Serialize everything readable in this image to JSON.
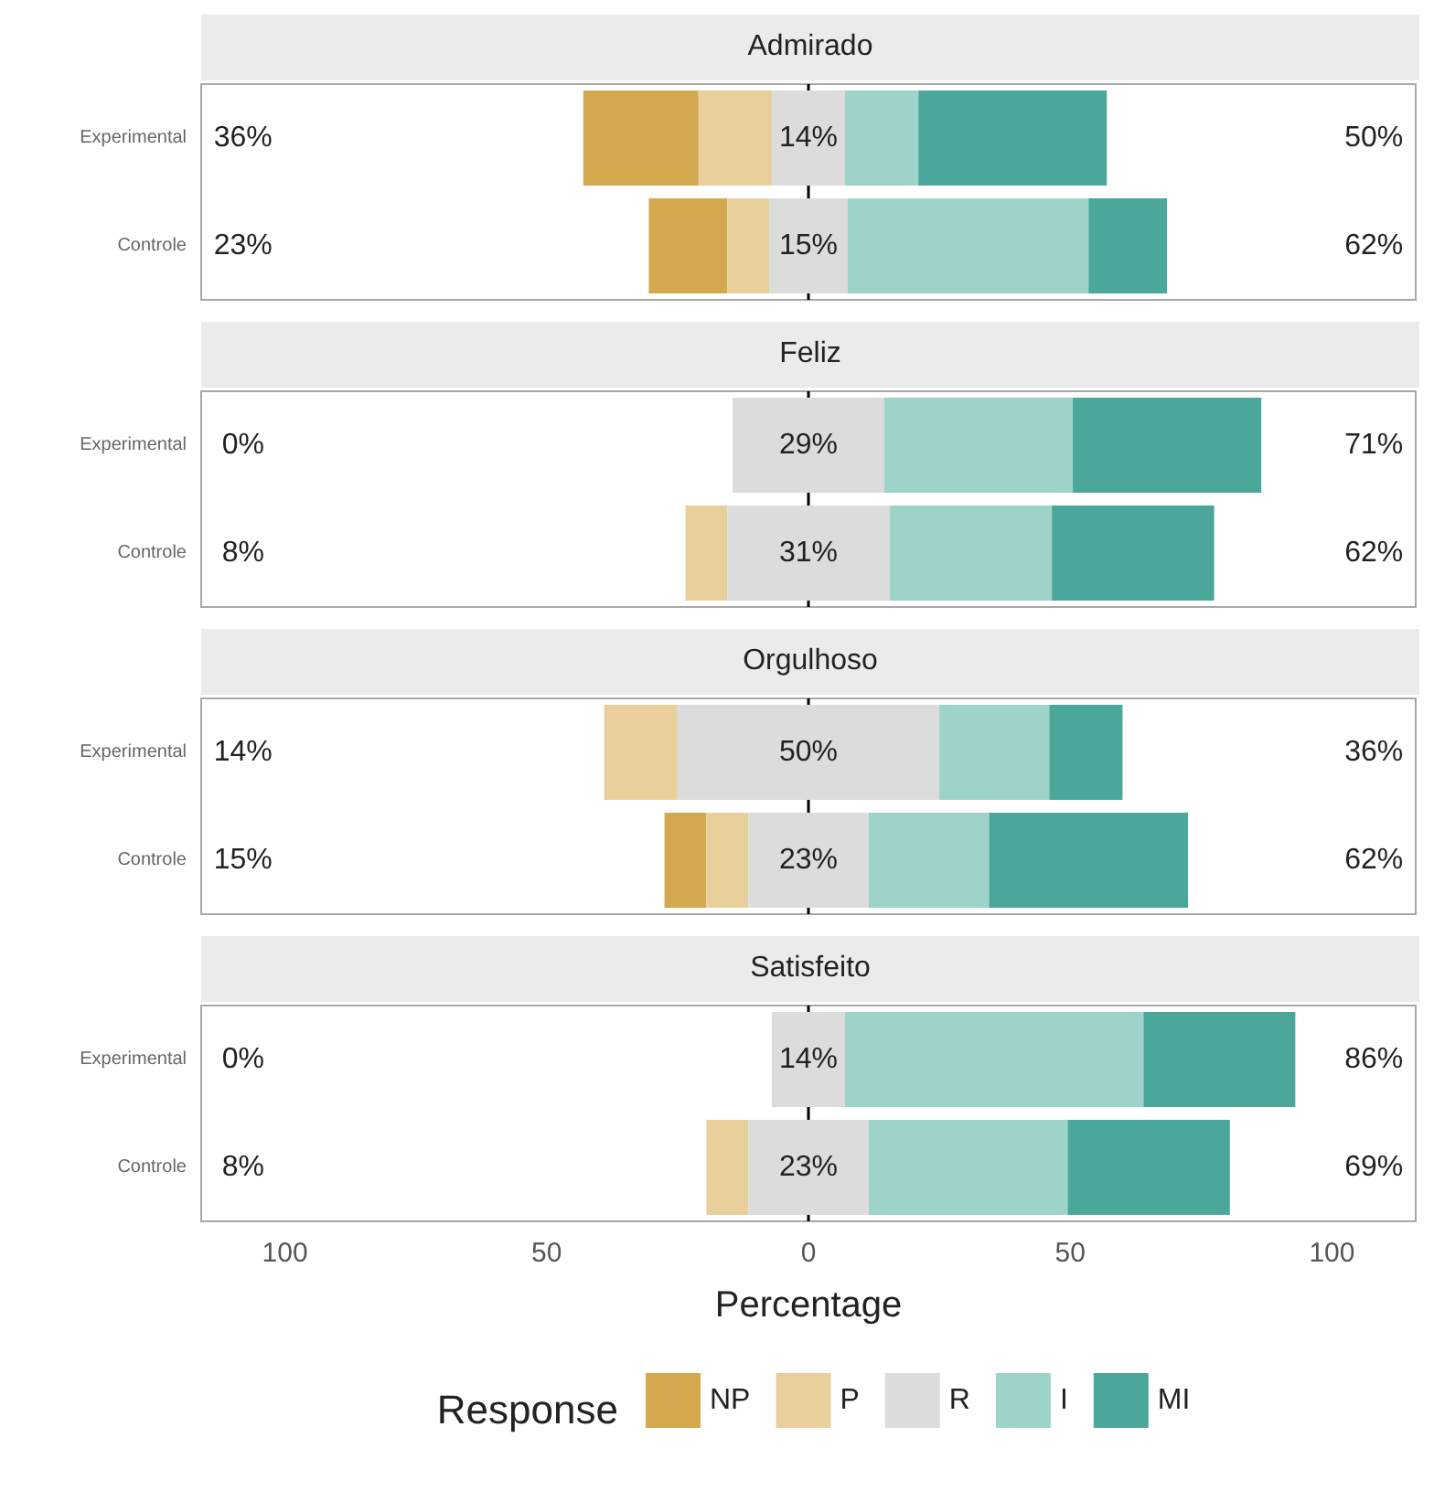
{
  "chart_data": [
    {
      "type": "bar",
      "title": "Admirado",
      "orientation": "horizontal",
      "categories": [
        "Experimental",
        "Controle"
      ],
      "xlim": [
        -116,
        116
      ],
      "tick_labels": "y",
      "grid": false,
      "legend": false,
      "series": [
        {
          "color": "#d3a84f",
          "values": [
            22,
            15
          ],
          "base": [
            -43,
            -30.5
          ]
        },
        {
          "color": "#e8cf9b",
          "values": [
            14,
            8
          ],
          "base": [
            -21,
            -15.5
          ]
        },
        {
          "color": "#dcdcdc",
          "values": [
            14,
            15
          ],
          "base": [
            -7,
            -7.5
          ]
        },
        {
          "color": "#9ed3ca",
          "values": [
            14,
            46
          ],
          "base": [
            7,
            7.5
          ]
        },
        {
          "color": "#4aa79a",
          "values": [
            36,
            15
          ],
          "base": [
            21,
            53.5
          ]
        }
      ],
      "ref_lines": [
        {
          "axis": "x",
          "value": 0,
          "color": "#000000"
        }
      ],
      "annotations": [
        "36%",
        "14%",
        "50%",
        "23%",
        "15%",
        "62%"
      ]
    },
    {
      "type": "bar",
      "title": "Feliz",
      "orientation": "horizontal",
      "categories": [
        "Experimental",
        "Controle"
      ],
      "xlim": [
        -116,
        116
      ],
      "tick_labels": "y",
      "grid": false,
      "legend": false,
      "series": [
        {
          "color": "#d3a84f",
          "values": [
            null,
            null
          ],
          "base": [
            null,
            null
          ]
        },
        {
          "color": "#e8cf9b",
          "values": [
            null,
            8
          ],
          "base": [
            null,
            -23.5
          ]
        },
        {
          "color": "#dcdcdc",
          "values": [
            29,
            31
          ],
          "base": [
            -14.5,
            -15.5
          ]
        },
        {
          "color": "#9ed3ca",
          "values": [
            36,
            31
          ],
          "base": [
            14.5,
            15.5
          ]
        },
        {
          "color": "#4aa79a",
          "values": [
            36,
            31
          ],
          "base": [
            50.5,
            46.5
          ]
        }
      ],
      "ref_lines": [
        {
          "axis": "x",
          "value": 0,
          "color": "#000000"
        }
      ],
      "annotations": [
        "0%",
        "29%",
        "71%",
        "8%",
        "31%",
        "62%"
      ]
    },
    {
      "type": "bar",
      "title": "Orgulhoso",
      "orientation": "horizontal",
      "categories": [
        "Experimental",
        "Controle"
      ],
      "xlim": [
        -116,
        116
      ],
      "tick_labels": "y",
      "grid": false,
      "legend": false,
      "series": [
        {
          "color": "#d3a84f",
          "values": [
            null,
            8
          ],
          "base": [
            null,
            -27.5
          ]
        },
        {
          "color": "#e8cf9b",
          "values": [
            14,
            8
          ],
          "base": [
            -39,
            -19.5
          ]
        },
        {
          "color": "#dcdcdc",
          "values": [
            50,
            23
          ],
          "base": [
            -25,
            -11.5
          ]
        },
        {
          "color": "#9ed3ca",
          "values": [
            21,
            23
          ],
          "base": [
            25,
            11.5
          ]
        },
        {
          "color": "#4aa79a",
          "values": [
            14,
            38
          ],
          "base": [
            46,
            34.5
          ]
        }
      ],
      "ref_lines": [
        {
          "axis": "x",
          "value": 0,
          "color": "#000000"
        }
      ],
      "annotations": [
        "14%",
        "50%",
        "36%",
        "15%",
        "23%",
        "62%"
      ]
    },
    {
      "type": "bar",
      "title": "Satisfeito",
      "orientation": "horizontal",
      "categories": [
        "Experimental",
        "Controle"
      ],
      "xlim": [
        -116,
        116
      ],
      "xticks": [
        {
          "value": -100,
          "label": "100"
        },
        {
          "value": -50,
          "label": "50"
        },
        0,
        50,
        100
      ],
      "xlabel": "Percentage",
      "grid": false,
      "legend": "bottom",
      "legend_title": "Response",
      "series": [
        {
          "name": "NP",
          "color": "#d3a84f",
          "values": [
            null,
            null
          ],
          "base": [
            null,
            null
          ]
        },
        {
          "name": "P",
          "color": "#e8cf9b",
          "values": [
            null,
            8
          ],
          "base": [
            null,
            -19.5
          ]
        },
        {
          "name": "R",
          "color": "#dcdcdc",
          "values": [
            14,
            23
          ],
          "base": [
            -7,
            -11.5
          ]
        },
        {
          "name": "I",
          "color": "#9ed3ca",
          "values": [
            57,
            38
          ],
          "base": [
            7,
            11.5
          ]
        },
        {
          "name": "MI",
          "color": "#4aa79a",
          "values": [
            29,
            31
          ],
          "base": [
            64,
            49.5
          ]
        }
      ],
      "ref_lines": [
        {
          "axis": "x",
          "value": 0,
          "color": "#000000"
        }
      ],
      "annotations": [
        "0%",
        "14%",
        "86%",
        "8%",
        "23%",
        "69%"
      ]
    }
  ]
}
